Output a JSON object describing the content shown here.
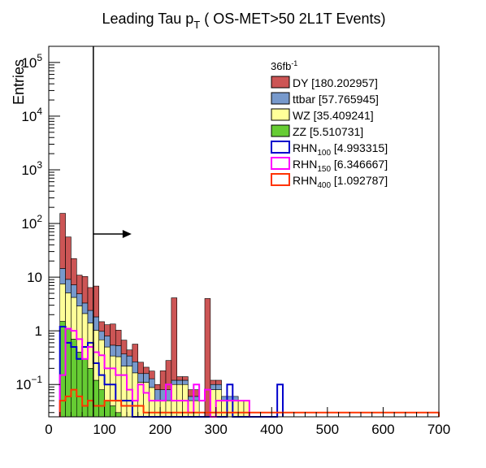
{
  "chart_data": {
    "type": "bar",
    "title": "Leading Tau p",
    "title_sub": "T",
    "title_rest": " ( OS-MET>50 2L1T Events)",
    "ylabel": "Entries",
    "xlabel": "",
    "xlim": [
      0,
      700
    ],
    "ylim_log": [
      0.025,
      200000
    ],
    "log_y": true,
    "legend_placement": "top-right",
    "lumi_label": "36fb",
    "lumi_sup": "-1",
    "x_ticks": [
      "0",
      "100",
      "200",
      "300",
      "400",
      "500",
      "600",
      "700"
    ],
    "y_ticks": [
      {
        "base": "10",
        "exp": "5",
        "value": 100000
      },
      {
        "base": "10",
        "exp": "4",
        "value": 10000
      },
      {
        "base": "10",
        "exp": "3",
        "value": 1000
      },
      {
        "base": "10",
        "exp": "2",
        "value": 100
      },
      {
        "base": "10",
        "exp": "",
        "value": 10
      },
      {
        "base": "1",
        "exp": "",
        "value": 1
      },
      {
        "base": "10",
        "exp": "−1",
        "value": 0.1
      }
    ],
    "cut_line_x": 80,
    "bin_edges_start": 20,
    "bin_width": 10,
    "stack": [
      {
        "name": "ZZ",
        "value_label": "[5.510731]",
        "color": "#66cc33",
        "values": [
          1.5,
          1.1,
          0.7,
          0.4,
          0.3,
          0.2,
          0.12,
          0.08,
          0.05,
          0.04,
          0.03,
          0.02,
          0.02,
          0.015,
          0.01,
          0.01,
          0.008
        ]
      },
      {
        "name": "WZ",
        "value_label": "[35.409241]",
        "color": "#ffff99",
        "values": [
          6,
          4,
          3.5,
          2.5,
          1.8,
          1.2,
          0.9,
          0.6,
          0.45,
          0.3,
          0.3,
          0.2,
          0.2,
          0.15,
          0.1,
          0.1,
          0.08,
          0.05,
          0.05,
          0.05,
          0.1,
          0.1,
          0.1,
          0.05,
          0.05,
          0,
          0,
          0.08,
          0.08,
          0.05,
          0.05,
          0.05,
          0.05,
          0.05
        ]
      },
      {
        "name": "ttbar",
        "value_label": "[57.765945]",
        "color": "#7799cc",
        "values": [
          7,
          4,
          3,
          2,
          1.2,
          1,
          0.8,
          0.3,
          0.3,
          0.2,
          0.2,
          0.15,
          0.12,
          0.1,
          0.05,
          0.05,
          0.04,
          0.03,
          0.03,
          0.03,
          0.02,
          0.02,
          0.02,
          0.01,
          0.01,
          0,
          0,
          0.02,
          0.02,
          0.01,
          0.01,
          0.01
        ]
      },
      {
        "name": "DY",
        "value_label": "[180.202957]",
        "color": "#cc5555",
        "values": [
          140,
          47,
          15,
          6,
          7,
          4,
          5,
          0.5,
          0.5,
          0.8,
          0.5,
          0.3,
          0.1,
          0.3,
          0.1,
          0.05,
          0.05,
          0.02,
          0.1,
          0.2,
          4,
          0.02,
          0.02,
          0.02,
          0.02,
          0,
          4,
          0.02,
          0.02
        ]
      }
    ],
    "overlays": [
      {
        "name": "RHN",
        "sub": "100",
        "value_label": "[4.993315]",
        "color": "#0000cc",
        "values": [
          1.2,
          0.6,
          0.5,
          0.3,
          0.5,
          0.6,
          0.25,
          0.15,
          0.1,
          0.1,
          0.05,
          0.05,
          0.05,
          0,
          0,
          0,
          0,
          0,
          0,
          0,
          0,
          0,
          0,
          0,
          0,
          0,
          0,
          0,
          0,
          0,
          0.1,
          0,
          0,
          0,
          0,
          0,
          0,
          0,
          0,
          0.1
        ]
      },
      {
        "name": "RHN",
        "sub": "150",
        "value_label": "[6.346667]",
        "color": "#ff00ff",
        "values": [
          0.15,
          1.1,
          1.0,
          0.7,
          0.3,
          0.5,
          0.4,
          0.35,
          0.2,
          0.2,
          0.15,
          0.15,
          0.08,
          0.05,
          0.1,
          0.07,
          0.05,
          0.05,
          0.05,
          0.1,
          0.05,
          0.05,
          0.05,
          0.03,
          0.1,
          0.05,
          0.08,
          0,
          0.05,
          0.05,
          0.05,
          0.05,
          0.05,
          0.05
        ]
      },
      {
        "name": "RHN",
        "sub": "400",
        "value_label": "[1.092787]",
        "color": "#ff3300",
        "values": [
          0.05,
          0.06,
          0.08,
          0.06,
          0.04,
          0.05,
          0.04,
          0.04,
          0.05,
          0.05,
          0.05,
          0.04,
          0.04,
          0.04,
          0.04,
          0.03,
          0.03,
          0.03,
          0.03,
          0.03,
          0.03,
          0.03,
          0.03,
          0.03,
          0.03,
          0.03,
          0.03,
          0.03,
          0.03,
          0.03,
          0.03,
          0.03,
          0.03,
          0.03,
          0.03,
          0.03,
          0.03,
          0.03,
          0.03,
          0.03,
          0.03,
          0.03,
          0.03,
          0.03,
          0.03,
          0.03,
          0.03,
          0.03,
          0.03,
          0.03,
          0.03,
          0.03,
          0.03,
          0.03,
          0.03,
          0.03,
          0.03,
          0.03,
          0.03,
          0.03,
          0.03,
          0.03,
          0.03,
          0.03,
          0.03,
          0.03,
          0.03,
          0.03
        ]
      }
    ]
  }
}
